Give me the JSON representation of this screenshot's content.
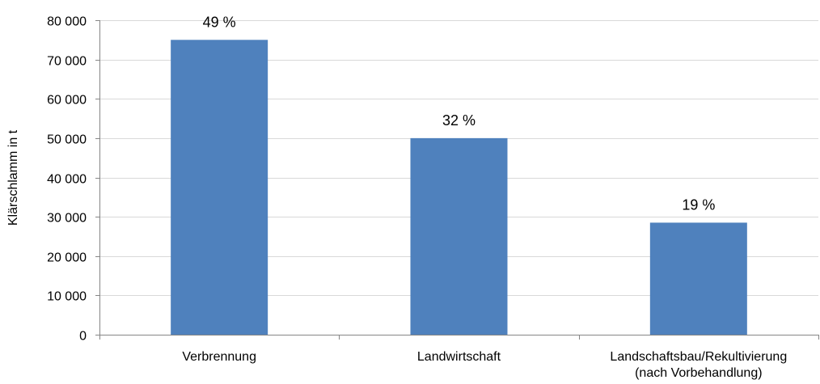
{
  "chart_data": {
    "type": "bar",
    "title": "",
    "xlabel": "",
    "ylabel": "Klärschlamm in t",
    "ylim": [
      0,
      80000
    ],
    "yticks": [
      0,
      10000,
      20000,
      30000,
      40000,
      50000,
      60000,
      70000,
      80000
    ],
    "ytick_labels": [
      "0",
      "10 000",
      "20 000",
      "30 000",
      "40 000",
      "50 000",
      "60 000",
      "70 000",
      "80 000"
    ],
    "categories": [
      [
        "Verbrennung"
      ],
      [
        "Landwirtschaft"
      ],
      [
        "Landschaftsbau/Rekultivierung",
        "(nach Vorbehandlung)"
      ]
    ],
    "values": [
      75000,
      50000,
      28500
    ],
    "data_labels": [
      "49 %",
      "32 %",
      "19 %"
    ],
    "grid": true,
    "legend": "none",
    "colors": {
      "bar": "#4f81bd",
      "grid": "#d9d9d9",
      "axis": "#868686"
    }
  }
}
